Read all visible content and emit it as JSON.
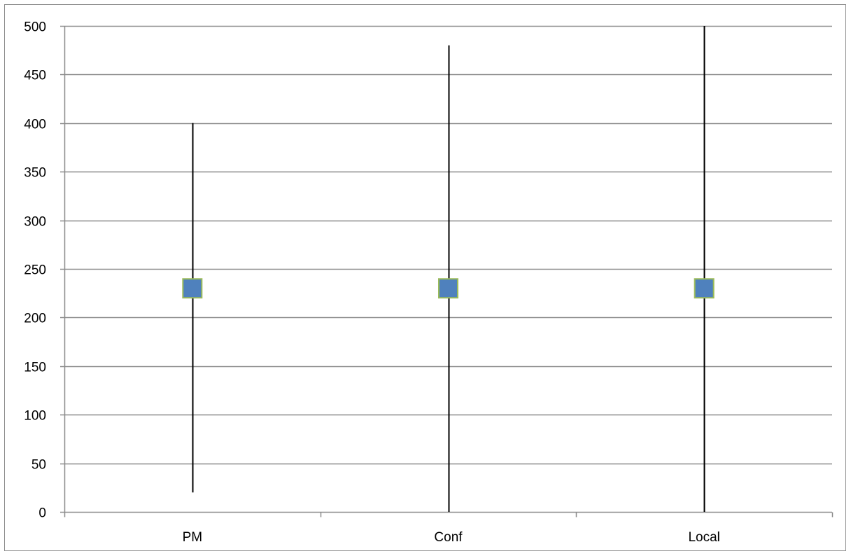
{
  "chart_data": {
    "type": "scatter",
    "categories": [
      "PM",
      "Conf",
      "Local"
    ],
    "series": [
      {
        "values": [
          230,
          230,
          230
        ],
        "low": [
          20,
          0,
          0
        ],
        "high": [
          400,
          480,
          500
        ]
      }
    ],
    "ylim": [
      0,
      500
    ],
    "y_ticks": [
      0,
      50,
      100,
      150,
      200,
      250,
      300,
      350,
      400,
      450,
      500
    ],
    "grid": true,
    "legend": "none",
    "title": "",
    "xlabel": "",
    "ylabel": "",
    "colors": {
      "marker_fill": "#4f81bd",
      "marker_border": "#9bbb59",
      "range_line": "#000000",
      "gridline": "#8c8c8c",
      "axis": "#8c8c8c"
    }
  }
}
